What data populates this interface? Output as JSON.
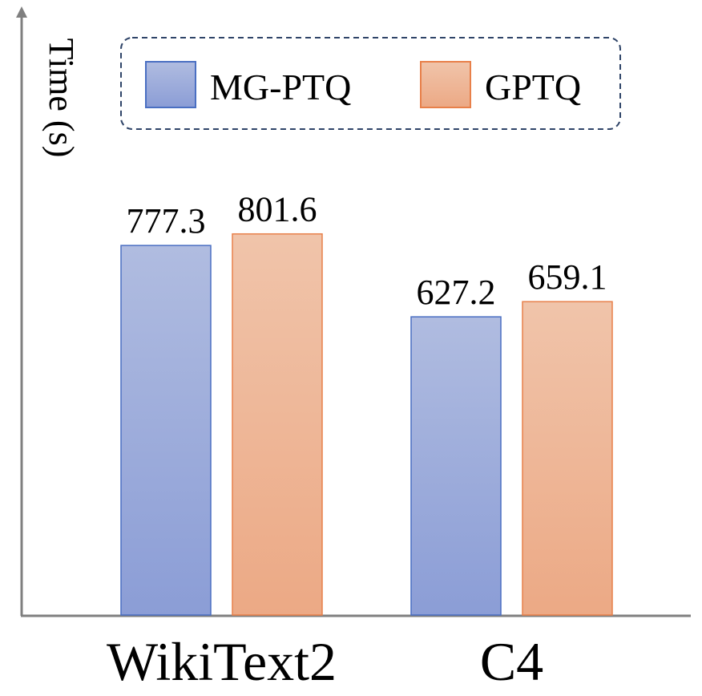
{
  "chart_data": {
    "type": "bar",
    "ylabel": "Time (s)",
    "xlabel": "",
    "categories": [
      "WikiText2",
      "C4"
    ],
    "series": [
      {
        "name": "MG-PTQ",
        "values": [
          777.3,
          627.2
        ],
        "labels": [
          "777.3",
          "627.2"
        ]
      },
      {
        "name": "GPTQ",
        "values": [
          801.6,
          659.1
        ],
        "labels": [
          "801.6",
          "659.1"
        ]
      }
    ],
    "ylim": [
      0,
      1270
    ],
    "grid": false,
    "legend_position": "top-center",
    "colors": {
      "MG-PTQ": {
        "top": "#B0BCE0",
        "bottom": "#8B9DD6",
        "stroke": "#4A6FC2"
      },
      "GPTQ": {
        "top": "#F0C4AA",
        "bottom": "#ECA985",
        "stroke": "#E8804A"
      },
      "axis": "#7F7F7F",
      "legend_border": "#2F4468"
    }
  }
}
